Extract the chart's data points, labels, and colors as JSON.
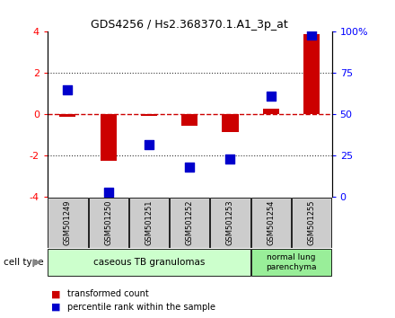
{
  "title": "GDS4256 / Hs2.368370.1.A1_3p_at",
  "samples": [
    "GSM501249",
    "GSM501250",
    "GSM501251",
    "GSM501252",
    "GSM501253",
    "GSM501254",
    "GSM501255"
  ],
  "transformed_count": [
    -0.1,
    -2.25,
    -0.05,
    -0.55,
    -0.85,
    0.28,
    3.9
  ],
  "percentile_rank_pct": [
    65,
    3,
    32,
    18,
    23,
    61,
    98
  ],
  "ylim": [
    -4,
    4
  ],
  "yticks_left": [
    -4,
    -2,
    0,
    2,
    4
  ],
  "yticks_right_pct": [
    0,
    25,
    50,
    75,
    100
  ],
  "right_tick_labels": [
    "0",
    "25",
    "50",
    "75",
    "100%"
  ],
  "bar_color": "#cc0000",
  "dot_color": "#0000cc",
  "zero_line_color": "#cc0000",
  "dotted_line_color": "#333333",
  "sample_box_color": "#cccccc",
  "cell_types": [
    {
      "label": "caseous TB granulomas",
      "n_samples": 5,
      "color": "#ccffcc"
    },
    {
      "label": "normal lung\nparenchyma",
      "n_samples": 2,
      "color": "#99ee99"
    }
  ],
  "legend_items": [
    {
      "color": "#cc0000",
      "label": "transformed count"
    },
    {
      "color": "#0000cc",
      "label": "percentile rank within the sample"
    }
  ],
  "cell_type_label": "cell type",
  "bar_width": 0.4
}
